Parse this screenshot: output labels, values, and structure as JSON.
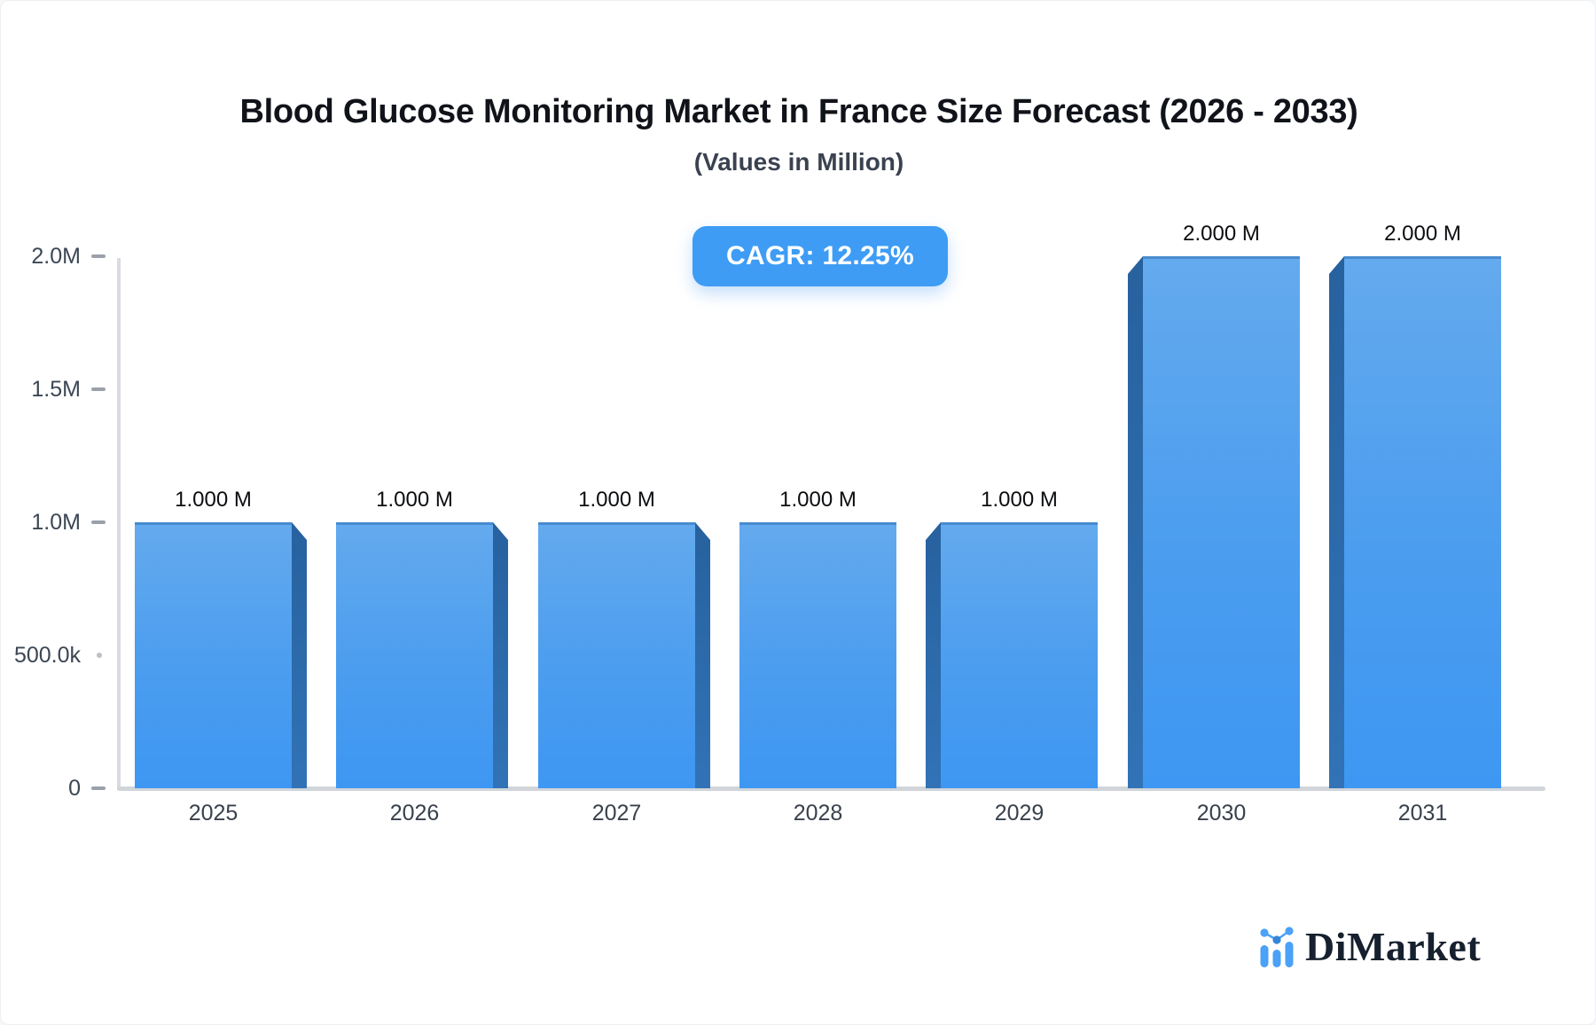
{
  "page": {
    "title": "Blood Glucose Monitoring Market in France Size Forecast (2026 - 2033)",
    "subtitle": "(Values in Million)",
    "cagr_label": "CAGR: 12.25%",
    "background": "#ffffff"
  },
  "chart_data": {
    "type": "bar",
    "title": "Blood Glucose Monitoring Market in France Size Forecast (2026 - 2033)",
    "subtitle": "(Values in Million)",
    "unit": "Million",
    "cagr_percent": 12.25,
    "categories": [
      "2025",
      "2026",
      "2027",
      "2028",
      "2029",
      "2030",
      "2031"
    ],
    "values_millions": [
      1.0,
      1.0,
      1.0,
      1.0,
      1.0,
      2.0,
      2.0
    ],
    "bar_labels": [
      "1.000 M",
      "1.000 M",
      "1.000 M",
      "1.000 M",
      "1.000 M",
      "2.000 M",
      "2.000 M"
    ],
    "y_axis": {
      "ticks": [
        {
          "label": "2.0M",
          "value": 2.0,
          "minor": false
        },
        {
          "label": "1.5M",
          "value": 1.5,
          "minor": false
        },
        {
          "label": "1.0M",
          "value": 1.0,
          "minor": false
        },
        {
          "label": "500.0k",
          "value": 0.5,
          "minor": true
        },
        {
          "label": "0",
          "value": 0,
          "minor": false
        }
      ],
      "range": [
        0,
        2.0
      ]
    },
    "legend": "none",
    "grid": "off",
    "colors": {
      "bar_face_top": "#64AAEE",
      "bar_face_bottom": "#3E97F2",
      "bar_side_top": "#27619E",
      "bar_side_bottom": "#3173B6",
      "badge": "#3E9CF5",
      "axis_line": "#D8DBDF",
      "tick": "#9AA1AA",
      "axis_text": "#3C4654",
      "value_text": "#0B0D10"
    }
  },
  "logo": {
    "text": "DiMarket",
    "icon": "bar-line-chart-icon",
    "text_color": "#16202E",
    "icon_color": "#4AA1F6"
  }
}
